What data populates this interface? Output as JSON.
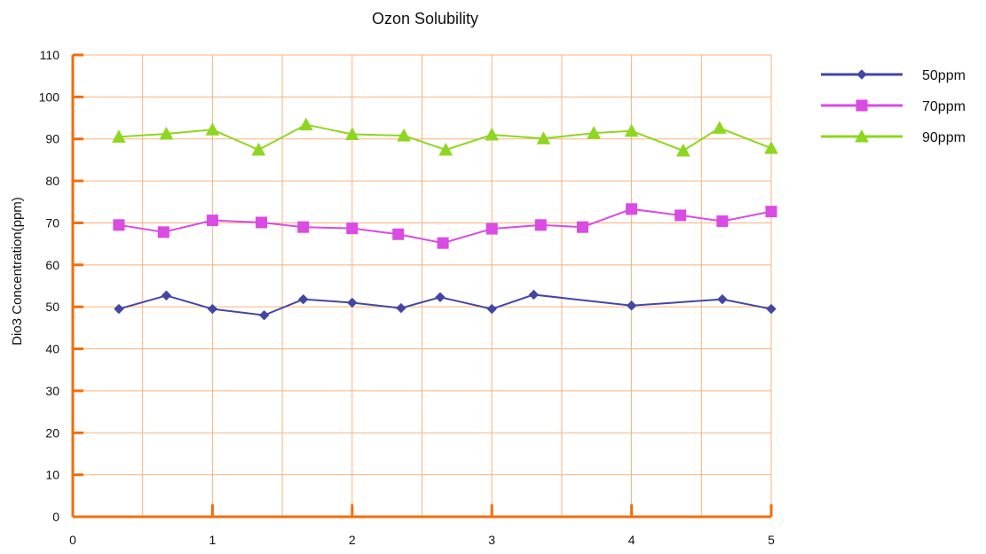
{
  "chart_data": {
    "type": "line",
    "title": "Ozon Solubility",
    "xlabel": "",
    "ylabel": "Dio3 Concentration(ppm)",
    "xlim": [
      0,
      5
    ],
    "ylim": [
      0,
      110
    ],
    "x_ticks": [
      0,
      1,
      2,
      3,
      4,
      5
    ],
    "x_tick_labels": [
      "0",
      "1",
      "2",
      "3",
      "4",
      "5"
    ],
    "y_ticks": [
      0,
      10,
      20,
      30,
      40,
      50,
      60,
      70,
      80,
      90,
      100,
      110
    ],
    "y_tick_labels": [
      "0",
      "10",
      "20",
      "30",
      "40",
      "50",
      "60",
      "70",
      "80",
      "90",
      "100",
      "110"
    ],
    "grid": {
      "vertical": [
        0.5,
        1,
        1.5,
        2,
        2.5,
        3,
        3.5,
        4,
        4.5,
        5
      ],
      "horizontal": [
        10,
        20,
        30,
        40,
        50,
        60,
        70,
        80,
        90,
        100,
        110
      ]
    },
    "legend": {
      "position": "right"
    },
    "colors": {
      "axis": "#f26d0c",
      "grid": "#f9b27d"
    },
    "series": [
      {
        "name": "50ppm",
        "color": "#4346a4",
        "marker": "diamond",
        "x": [
          0.33,
          0.67,
          1.0,
          1.37,
          1.65,
          2.0,
          2.35,
          2.63,
          3.0,
          3.3,
          4.0,
          4.65,
          5.0
        ],
        "y": [
          49.5,
          52.7,
          49.5,
          48.0,
          51.8,
          51.0,
          49.7,
          52.3,
          49.5,
          52.9,
          50.3,
          51.8,
          49.5
        ]
      },
      {
        "name": "70ppm",
        "color": "#d94be3",
        "marker": "square",
        "x": [
          0.33,
          0.65,
          1.0,
          1.35,
          1.65,
          2.0,
          2.33,
          2.65,
          3.0,
          3.35,
          3.65,
          4.0,
          4.35,
          4.65,
          5.0
        ],
        "y": [
          69.5,
          67.8,
          70.6,
          70.1,
          69.0,
          68.7,
          67.3,
          65.2,
          68.6,
          69.5,
          69.0,
          73.3,
          71.8,
          70.4,
          72.7
        ]
      },
      {
        "name": "90ppm",
        "color": "#8ed61f",
        "marker": "triangle",
        "x": [
          0.33,
          0.67,
          1.0,
          1.33,
          1.67,
          2.0,
          2.37,
          2.67,
          3.0,
          3.37,
          3.73,
          4.0,
          4.37,
          4.63,
          5.0
        ],
        "y": [
          90.5,
          91.2,
          92.2,
          87.4,
          93.4,
          91.1,
          90.8,
          87.4,
          91.0,
          90.1,
          91.4,
          91.9,
          87.2,
          92.6,
          87.8
        ]
      }
    ]
  }
}
